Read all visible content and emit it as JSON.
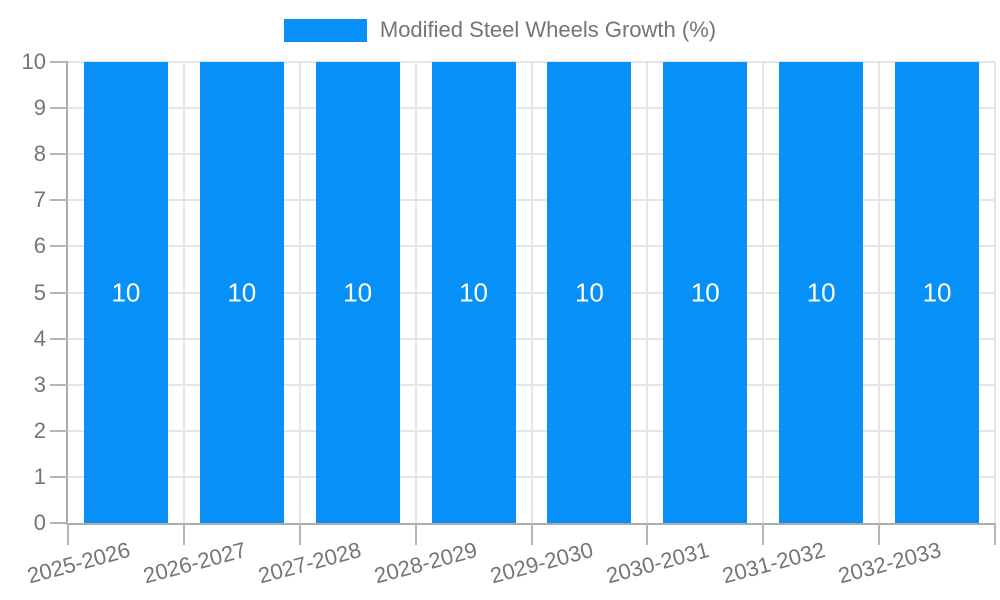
{
  "chart_data": {
    "type": "bar",
    "title": "",
    "legend": {
      "label": "Modified Steel Wheels Growth (%)",
      "position": "top"
    },
    "categories": [
      "2025-2026",
      "2026-2027",
      "2027-2028",
      "2028-2029",
      "2029-2030",
      "2030-2031",
      "2031-2032",
      "2032-2033"
    ],
    "series": [
      {
        "name": "Modified Steel Wheels Growth (%)",
        "values": [
          10,
          10,
          10,
          10,
          10,
          10,
          10,
          10
        ]
      }
    ],
    "value_labels": [
      "10",
      "10",
      "10",
      "10",
      "10",
      "10",
      "10",
      "10"
    ],
    "xlabel": "",
    "ylabel": "",
    "ylim": [
      0,
      10
    ],
    "yticks": [
      0,
      1,
      2,
      3,
      4,
      5,
      6,
      7,
      8,
      9,
      10
    ],
    "grid": true,
    "legend_position": "top",
    "x_label_rotation_deg": -15
  },
  "colors": {
    "bar": "#0690f8",
    "axis": "#ababab",
    "grid": "#e5e5e5",
    "tick": "#b5b5b5",
    "label_text": "#757575",
    "bar_label": "#ffffff",
    "background": "#ffffff"
  }
}
